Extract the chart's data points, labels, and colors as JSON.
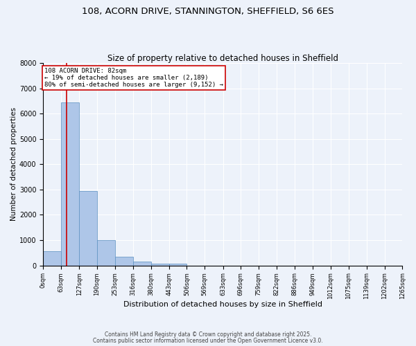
{
  "title_line1": "108, ACORN DRIVE, STANNINGTON, SHEFFIELD, S6 6ES",
  "title_line2": "Size of property relative to detached houses in Sheffield",
  "xlabel": "Distribution of detached houses by size in Sheffield",
  "ylabel": "Number of detached properties",
  "bin_edges": [
    0,
    63,
    127,
    190,
    253,
    316,
    380,
    443,
    506,
    569,
    633,
    696,
    759,
    822,
    886,
    949,
    1012,
    1075,
    1139,
    1202,
    1265
  ],
  "bar_heights": [
    550,
    6450,
    2950,
    1000,
    350,
    150,
    80,
    80,
    0,
    0,
    0,
    0,
    0,
    0,
    0,
    0,
    0,
    0,
    0,
    0
  ],
  "bar_color": "#aec6e8",
  "bar_edge_color": "#5a8fc0",
  "red_line_x": 82,
  "red_line_color": "#cc0000",
  "annotation_text": "108 ACORN DRIVE: 82sqm\n← 19% of detached houses are smaller (2,189)\n80% of semi-detached houses are larger (9,152) →",
  "annotation_box_color": "#ffffff",
  "annotation_edge_color": "#cc0000",
  "ylim": [
    0,
    8000
  ],
  "yticks": [
    0,
    1000,
    2000,
    3000,
    4000,
    5000,
    6000,
    7000,
    8000
  ],
  "tick_labels": [
    "0sqm",
    "63sqm",
    "127sqm",
    "190sqm",
    "253sqm",
    "316sqm",
    "380sqm",
    "443sqm",
    "506sqm",
    "569sqm",
    "633sqm",
    "696sqm",
    "759sqm",
    "822sqm",
    "886sqm",
    "949sqm",
    "1012sqm",
    "1075sqm",
    "1139sqm",
    "1202sqm",
    "1265sqm"
  ],
  "footer_line1": "Contains HM Land Registry data © Crown copyright and database right 2025.",
  "footer_line2": "Contains public sector information licensed under the Open Government Licence v3.0.",
  "background_color": "#edf2fa",
  "plot_background_color": "#edf2fa",
  "grid_color": "#ffffff"
}
